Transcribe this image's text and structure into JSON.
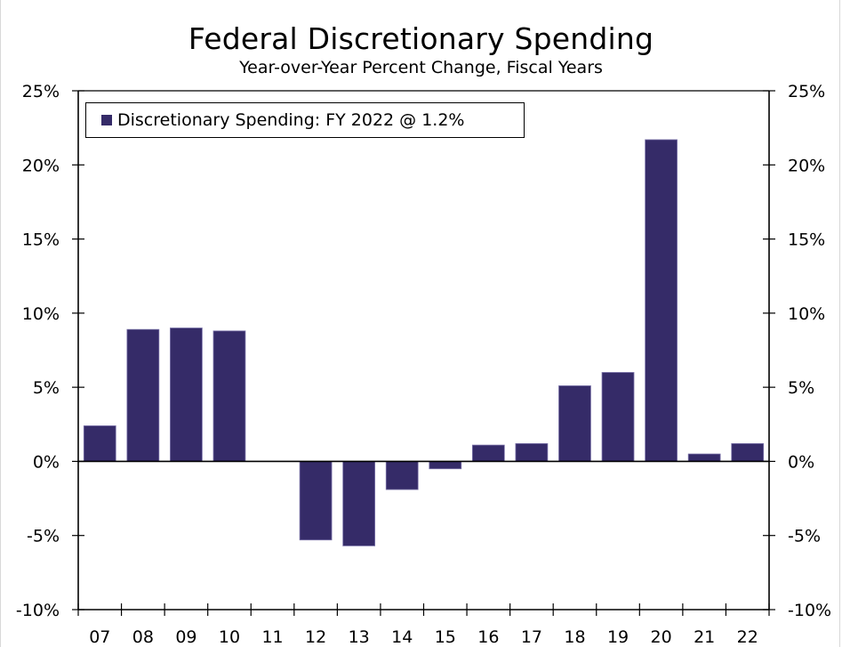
{
  "chart_data": {
    "type": "bar",
    "title": "Federal Discretionary Spending",
    "subtitle": "Year-over-Year Percent Change, Fiscal Years",
    "xlabel": "",
    "ylabel": "",
    "categories": [
      "07",
      "08",
      "09",
      "10",
      "11",
      "12",
      "13",
      "14",
      "15",
      "16",
      "17",
      "18",
      "19",
      "20",
      "21",
      "22"
    ],
    "series": [
      {
        "name": "Discretionary Spending: FY 2022 @ 1.2%",
        "color": "#352b68",
        "values": [
          2.4,
          8.9,
          9.0,
          8.8,
          0.0,
          -5.3,
          -5.7,
          -1.9,
          -0.5,
          1.1,
          1.2,
          5.1,
          6.0,
          21.7,
          0.5,
          1.2
        ]
      }
    ],
    "ylim": [
      -10,
      25
    ],
    "yticks": [
      -10,
      -5,
      0,
      5,
      10,
      15,
      20,
      25
    ],
    "ytick_labels": [
      "-10%",
      "-5%",
      "0%",
      "5%",
      "10%",
      "15%",
      "20%",
      "25%"
    ],
    "y_axis_right_mirror": true,
    "grid": false,
    "legend_position": "top-left"
  }
}
